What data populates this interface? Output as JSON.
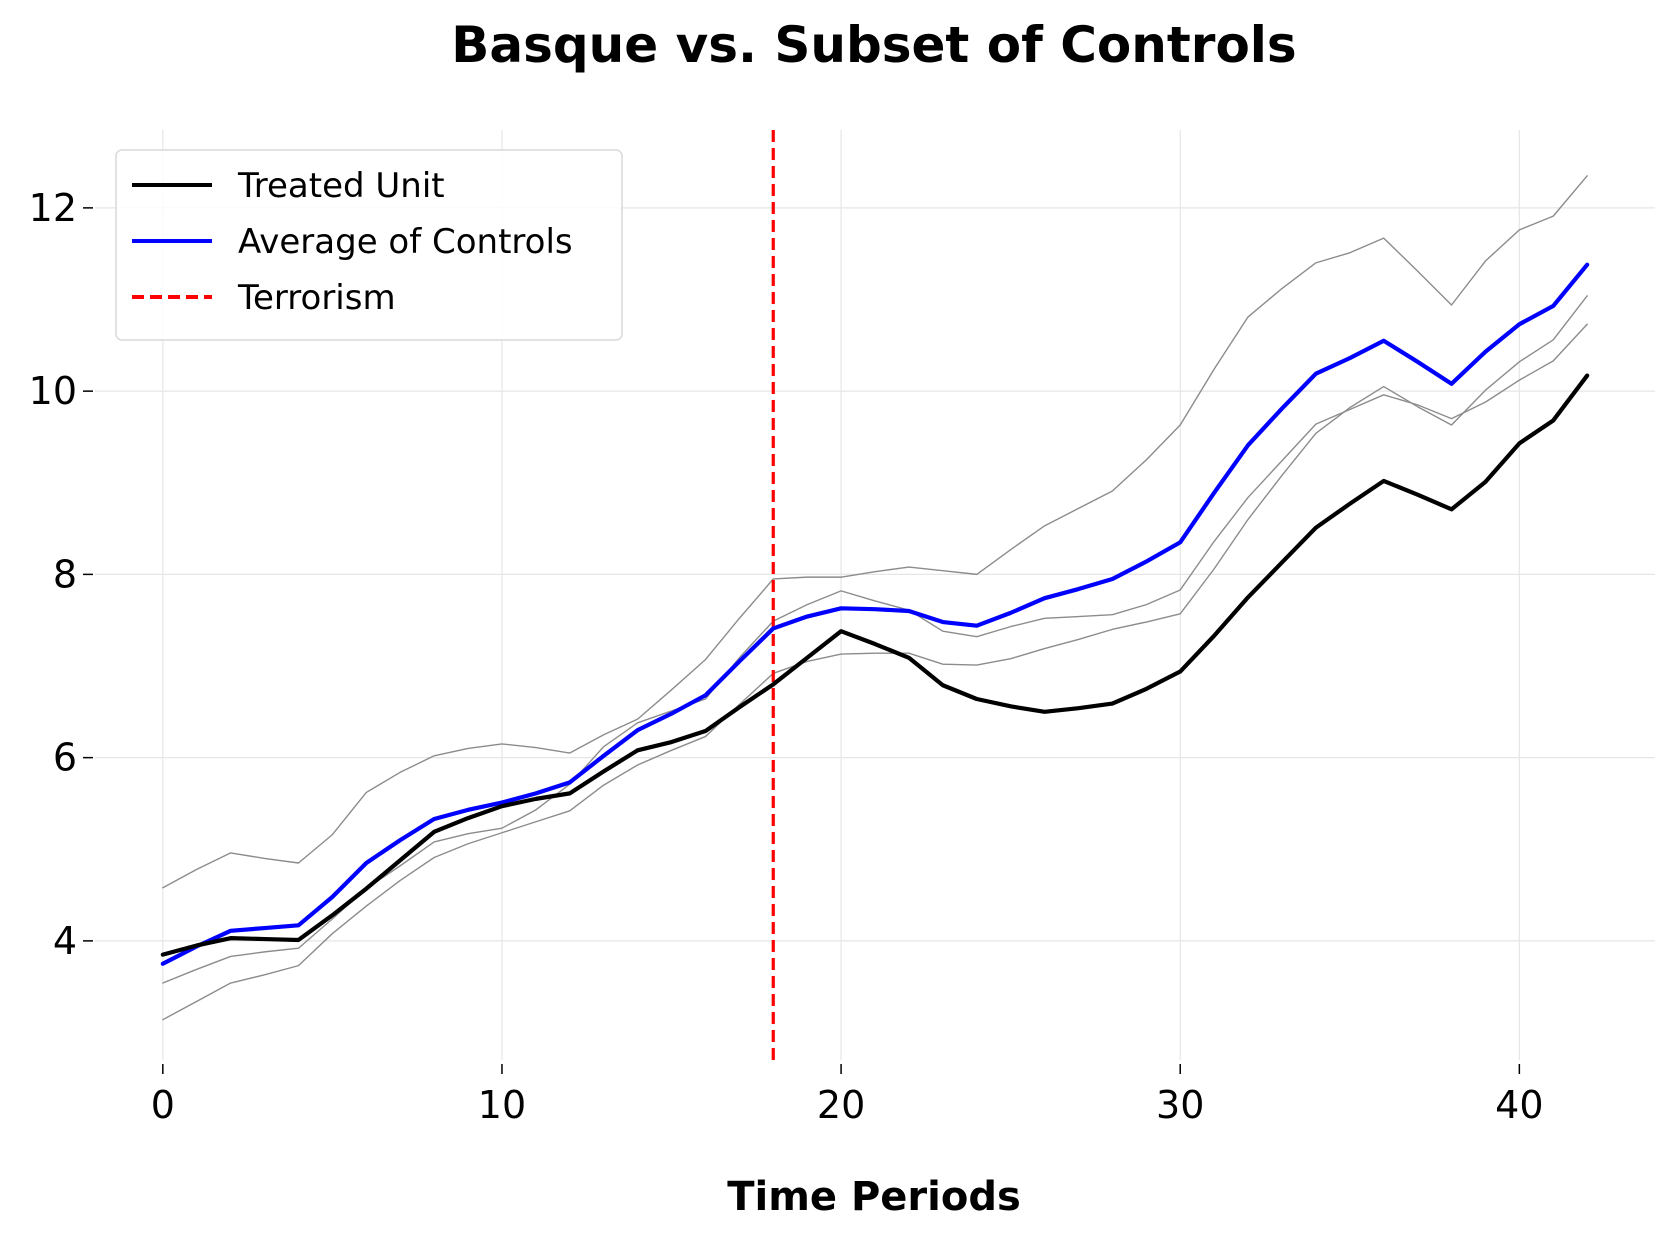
{
  "chart_data": {
    "type": "line",
    "title": "Basque vs. Subset of Controls",
    "xlabel": "Time Periods",
    "ylabel": "",
    "xlim": [
      -2,
      44
    ],
    "ylim": [
      2.7,
      12.85
    ],
    "xticks": [
      0,
      10,
      20,
      30,
      40
    ],
    "yticks": [
      4,
      6,
      8,
      10,
      12
    ],
    "grid": true,
    "legend_position": "top-left",
    "x": [
      0,
      1,
      2,
      3,
      4,
      5,
      6,
      7,
      8,
      9,
      10,
      11,
      12,
      13,
      14,
      15,
      16,
      17,
      18,
      19,
      20,
      21,
      22,
      23,
      24,
      25,
      26,
      27,
      28,
      29,
      30,
      31,
      32,
      33,
      34,
      35,
      36,
      37,
      38,
      39,
      40,
      41,
      42
    ],
    "series": [
      {
        "name": "Treated Unit",
        "color": "#000000",
        "values": [
          3.85,
          3.95,
          4.03,
          4.02,
          4.01,
          4.28,
          4.57,
          4.88,
          5.19,
          5.34,
          5.47,
          5.55,
          5.61,
          5.85,
          6.08,
          6.17,
          6.29,
          6.55,
          6.8,
          7.09,
          7.38,
          7.24,
          7.09,
          6.79,
          6.64,
          6.56,
          6.5,
          6.54,
          6.59,
          6.75,
          6.94,
          7.33,
          7.75,
          8.13,
          8.51,
          8.77,
          9.02,
          8.87,
          8.71,
          9.01,
          9.43,
          9.68,
          10.17
        ]
      },
      {
        "name": "Average of Controls",
        "color": "#0000ff",
        "values": [
          3.75,
          3.94,
          4.11,
          4.14,
          4.17,
          4.48,
          4.85,
          5.1,
          5.33,
          5.43,
          5.51,
          5.61,
          5.73,
          6.02,
          6.3,
          6.48,
          6.68,
          7.05,
          7.41,
          7.54,
          7.63,
          7.62,
          7.6,
          7.48,
          7.44,
          7.58,
          7.74,
          7.84,
          7.95,
          8.14,
          8.35,
          8.89,
          9.41,
          9.81,
          10.19,
          10.36,
          10.55,
          10.32,
          10.08,
          10.43,
          10.73,
          10.93,
          11.38
        ]
      },
      {
        "name": "",
        "color": "#8c8c8c",
        "values": [
          4.58,
          4.78,
          4.96,
          4.9,
          4.85,
          5.16,
          5.62,
          5.84,
          6.02,
          6.1,
          6.15,
          6.11,
          6.05,
          6.25,
          6.42,
          6.74,
          7.07,
          7.52,
          7.95,
          7.97,
          7.97,
          8.03,
          8.08,
          8.04,
          8.0,
          8.27,
          8.53,
          8.72,
          8.91,
          9.25,
          9.63,
          10.24,
          10.81,
          11.12,
          11.4,
          11.51,
          11.67,
          11.31,
          10.94,
          11.42,
          11.76,
          11.91,
          12.35
        ]
      },
      {
        "name": "",
        "color": "#8c8c8c",
        "values": [
          3.54,
          3.69,
          3.83,
          3.88,
          3.92,
          4.24,
          4.57,
          4.82,
          5.08,
          5.17,
          5.23,
          5.43,
          5.71,
          6.12,
          6.38,
          6.51,
          6.64,
          7.09,
          7.49,
          7.67,
          7.82,
          7.71,
          7.61,
          7.38,
          7.32,
          7.43,
          7.52,
          7.54,
          7.56,
          7.67,
          7.83,
          8.36,
          8.84,
          9.24,
          9.64,
          9.8,
          9.96,
          9.85,
          9.7,
          9.88,
          10.12,
          10.33,
          10.73
        ]
      },
      {
        "name": "",
        "color": "#8c8c8c",
        "values": [
          3.14,
          3.34,
          3.54,
          3.63,
          3.73,
          4.08,
          4.38,
          4.66,
          4.91,
          5.06,
          5.18,
          5.3,
          5.42,
          5.7,
          5.92,
          6.08,
          6.23,
          6.58,
          6.92,
          7.05,
          7.13,
          7.14,
          7.14,
          7.02,
          7.01,
          7.08,
          7.19,
          7.29,
          7.4,
          7.48,
          7.57,
          8.06,
          8.6,
          9.08,
          9.54,
          9.82,
          10.05,
          9.83,
          9.63,
          10.01,
          10.32,
          10.56,
          11.04
        ]
      }
    ],
    "vline": {
      "name": "Terrorism",
      "x": 18,
      "color": "#ff0000",
      "style": "dashed"
    },
    "legend": [
      {
        "label": "Treated Unit",
        "color": "#000000",
        "style": "solid"
      },
      {
        "label": "Average of Controls",
        "color": "#0000ff",
        "style": "solid"
      },
      {
        "label": "Terrorism",
        "color": "#ff0000",
        "style": "dashed"
      }
    ]
  }
}
